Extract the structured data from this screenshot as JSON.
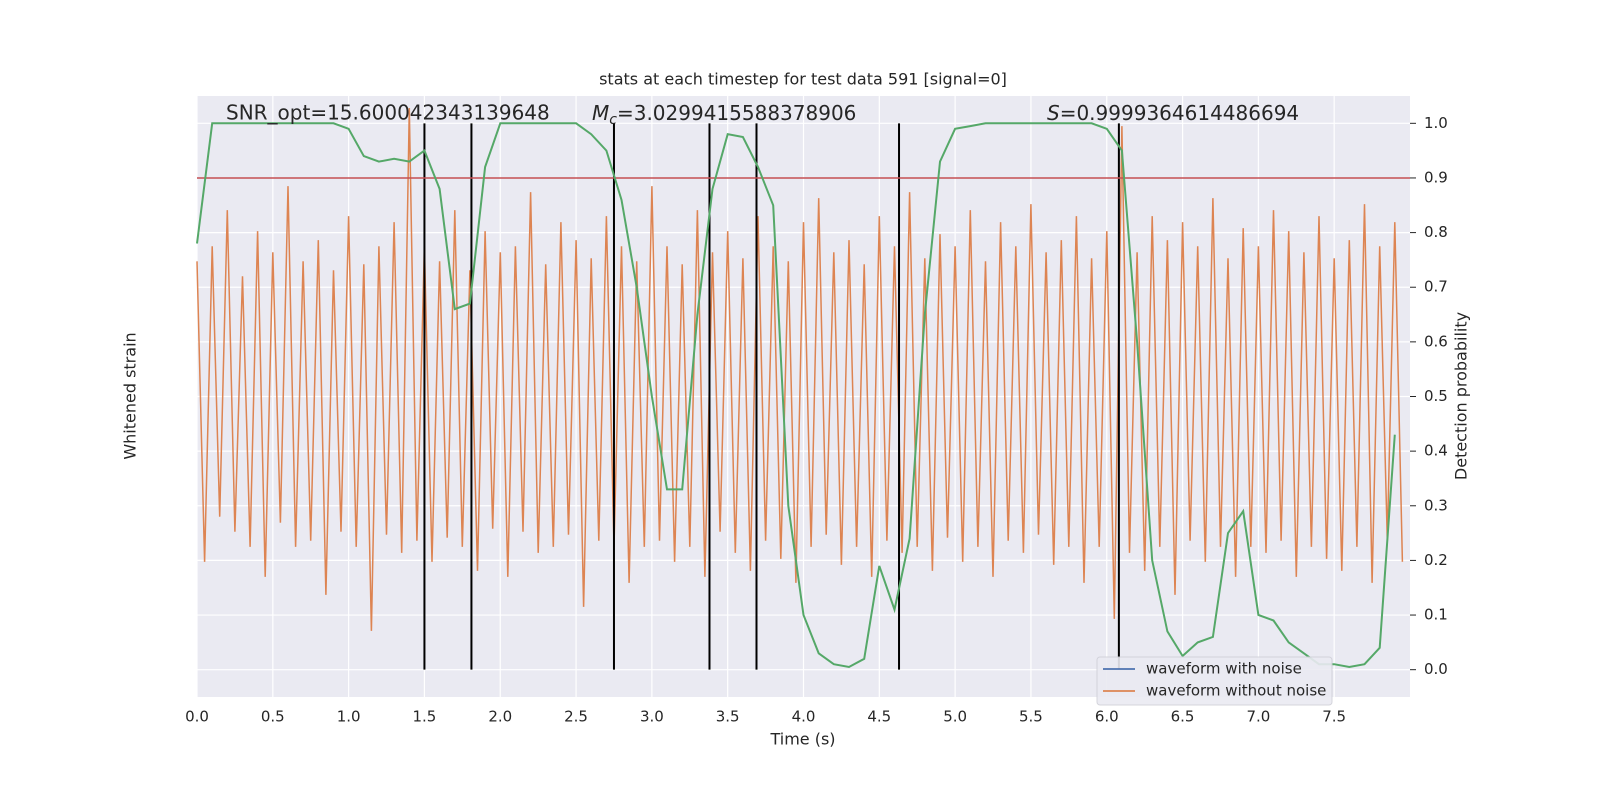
{
  "chart_data": {
    "type": "line",
    "title": "stats at each timestep for test data 591 [signal=0]",
    "xlabel": "Time (s)",
    "ylabel": "Whitened strain",
    "y2label": "Detection probability",
    "annotations": {
      "snr": "SNR_opt=15.600042343139648",
      "mc_symbol": "M",
      "mc_subscript": "c",
      "mc_value": "=3.0299415588378906",
      "s_symbol": "S",
      "s_value": "=0.9999364614486694"
    },
    "xlim": [
      0,
      8
    ],
    "xticks": [
      {
        "value": 0,
        "label": "0.0"
      },
      0.5,
      {
        "value": 1,
        "label": "1.0"
      },
      1.5,
      {
        "value": 2,
        "label": "2.0"
      },
      2.5,
      {
        "value": 3,
        "label": "3.0"
      },
      3.5,
      {
        "value": 4,
        "label": "4.0"
      },
      4.5,
      {
        "value": 5,
        "label": "5.0"
      },
      5.5,
      {
        "value": 6,
        "label": "6.0"
      },
      6.5,
      {
        "value": 7,
        "label": "7.0"
      },
      7.5
    ],
    "ylim": [
      -1,
      1
    ],
    "y2lim": [
      -0.05,
      1.05
    ],
    "y2ticks": [
      {
        "value": 0,
        "label": "0.0"
      },
      0.1,
      0.2,
      0.3,
      0.4,
      0.5,
      0.6,
      0.7,
      0.8,
      0.9,
      {
        "value": 1,
        "label": "1.0"
      }
    ],
    "grid": true,
    "legend": "lower right",
    "series": [
      {
        "name": "waveform with noise",
        "color": "#4c72b0"
      },
      {
        "name": "waveform without noise",
        "color": "#dd8452",
        "x": [
          0,
          0.05,
          0.1,
          0.15,
          0.2,
          0.25,
          0.3,
          0.35,
          0.4,
          0.45,
          0.5,
          0.55,
          0.6,
          0.65,
          0.7,
          0.75,
          0.8,
          0.85,
          0.9,
          0.95,
          1,
          1.05,
          1.1,
          1.15,
          1.2,
          1.25,
          1.3,
          1.35,
          1.4,
          1.45,
          1.5,
          1.55,
          1.6,
          1.65,
          1.7,
          1.75,
          1.8,
          1.85,
          1.9,
          1.95,
          2,
          2.05,
          2.1,
          2.15,
          2.2,
          2.25,
          2.3,
          2.35,
          2.4,
          2.45,
          2.5,
          2.55,
          2.6,
          2.65,
          2.7,
          2.75,
          2.8,
          2.85,
          2.9,
          2.95,
          3,
          3.05,
          3.1,
          3.15,
          3.2,
          3.25,
          3.3,
          3.35,
          3.4,
          3.45,
          3.5,
          3.55,
          3.6,
          3.65,
          3.7,
          3.75,
          3.8,
          3.85,
          3.9,
          3.95,
          4,
          4.05,
          4.1,
          4.15,
          4.2,
          4.25,
          4.3,
          4.35,
          4.4,
          4.45,
          4.5,
          4.55,
          4.6,
          4.65,
          4.7,
          4.75,
          4.8,
          4.85,
          4.9,
          4.95,
          5,
          5.05,
          5.1,
          5.15,
          5.2,
          5.25,
          5.3,
          5.35,
          5.4,
          5.45,
          5.5,
          5.55,
          5.6,
          5.65,
          5.7,
          5.75,
          5.8,
          5.85,
          5.9,
          5.95,
          6,
          6.05,
          6.1,
          6.15,
          6.2,
          6.25,
          6.3,
          6.35,
          6.4,
          6.45,
          6.5,
          6.55,
          6.6,
          6.65,
          6.7,
          6.75,
          6.8,
          6.85,
          6.9,
          6.95,
          7,
          7.05,
          7.1,
          7.15,
          7.2,
          7.25,
          7.3,
          7.35,
          7.4,
          7.45,
          7.5,
          7.55,
          7.6,
          7.65,
          7.7,
          7.75,
          7.8,
          7.85,
          7.9,
          7.95
        ],
        "values": [
          0.45,
          -0.55,
          0.5,
          -0.4,
          0.62,
          -0.45,
          0.4,
          -0.5,
          0.55,
          -0.6,
          0.48,
          -0.42,
          0.7,
          -0.5,
          0.45,
          -0.48,
          0.52,
          -0.66,
          0.42,
          -0.45,
          0.6,
          -0.5,
          0.44,
          -0.78,
          0.5,
          -0.46,
          0.58,
          -0.52,
          0.96,
          -0.48,
          0.5,
          -0.55,
          0.45,
          -0.47,
          0.62,
          -0.5,
          0.42,
          -0.58,
          0.55,
          -0.44,
          0.48,
          -0.6,
          0.5,
          -0.45,
          0.68,
          -0.52,
          0.44,
          -0.5,
          0.58,
          -0.46,
          0.52,
          -0.7,
          0.46,
          -0.48,
          0.6,
          -0.5,
          0.5,
          -0.62,
          0.45,
          -0.5,
          0.7,
          -0.48,
          0.5,
          -0.55,
          0.44,
          -0.5,
          0.62,
          -0.6,
          0.48,
          -0.45,
          0.55,
          -0.52,
          0.46,
          -0.58,
          0.6,
          -0.48,
          0.5,
          -0.54,
          0.45,
          -0.62,
          0.58,
          -0.5,
          0.66,
          -0.46,
          0.48,
          -0.56,
          0.52,
          -0.5,
          0.44,
          -0.6,
          0.6,
          -0.48,
          0.5,
          -0.52,
          0.68,
          -0.5,
          0.46,
          -0.58,
          0.54,
          -0.47,
          0.5,
          -0.55,
          0.62,
          -0.5,
          0.45,
          -0.6,
          0.58,
          -0.48,
          0.5,
          -0.52,
          0.64,
          -0.46,
          0.48,
          -0.56,
          0.52,
          -0.5,
          0.6,
          -0.62,
          0.46,
          -0.5,
          0.55,
          -0.74,
          0.9,
          -0.52,
          0.48,
          -0.58,
          0.6,
          -0.5,
          0.52,
          -0.66,
          0.58,
          -0.48,
          0.5,
          -0.55,
          0.66,
          -0.5,
          0.46,
          -0.6,
          0.56,
          -0.5,
          0.5,
          -0.52,
          0.62,
          -0.48,
          0.55,
          -0.6,
          0.48,
          -0.5,
          0.6,
          -0.54,
          0.46,
          -0.58,
          0.52,
          -0.5,
          0.64,
          -0.62,
          0.5,
          -0.48,
          0.58,
          -0.55
        ]
      }
    ],
    "detection_probability": {
      "color": "#55a868",
      "axis": "y2",
      "x": [
        0,
        0.1,
        0.2,
        0.3,
        0.4,
        0.5,
        0.6,
        0.7,
        0.8,
        0.9,
        1,
        1.1,
        1.2,
        1.3,
        1.4,
        1.5,
        1.6,
        1.7,
        1.8,
        1.9,
        2,
        2.1,
        2.2,
        2.3,
        2.4,
        2.5,
        2.6,
        2.7,
        2.8,
        2.9,
        3,
        3.1,
        3.2,
        3.3,
        3.4,
        3.5,
        3.6,
        3.7,
        3.8,
        3.9,
        4,
        4.1,
        4.2,
        4.3,
        4.4,
        4.5,
        4.6,
        4.7,
        4.8,
        4.9,
        5,
        5.1,
        5.2,
        5.3,
        5.4,
        5.5,
        5.6,
        5.7,
        5.8,
        5.9,
        6,
        6.1,
        6.2,
        6.3,
        6.4,
        6.5,
        6.6,
        6.7,
        6.8,
        6.9,
        7,
        7.1,
        7.2,
        7.3,
        7.4,
        7.5,
        7.6,
        7.7,
        7.8,
        7.9
      ],
      "values": [
        0.78,
        1,
        1,
        1,
        1,
        1,
        1,
        1,
        1,
        1,
        0.99,
        0.94,
        0.93,
        0.935,
        0.93,
        0.95,
        0.88,
        0.66,
        0.67,
        0.92,
        1,
        1,
        1,
        1,
        1,
        1,
        0.98,
        0.95,
        0.86,
        0.7,
        0.5,
        0.33,
        0.33,
        0.65,
        0.88,
        0.98,
        0.975,
        0.92,
        0.85,
        0.3,
        0.1,
        0.03,
        0.01,
        0.005,
        0.02,
        0.19,
        0.11,
        0.24,
        0.65,
        0.93,
        0.99,
        0.995,
        1,
        1,
        1,
        1,
        1,
        1,
        1,
        1,
        0.99,
        0.95,
        0.6,
        0.2,
        0.07,
        0.025,
        0.05,
        0.06,
        0.25,
        0.29,
        0.1,
        0.09,
        0.05,
        0.03,
        0.01,
        0.01,
        0.005,
        0.01,
        0.04,
        0.43
      ]
    },
    "vlines": [
      1.5,
      1.81,
      2.75,
      3.38,
      3.69,
      4.63,
      6.08
    ],
    "vline_range": [
      0,
      1
    ],
    "vline_color": "#000000",
    "threshold": 0.9,
    "threshold_color": "#c44e52"
  }
}
